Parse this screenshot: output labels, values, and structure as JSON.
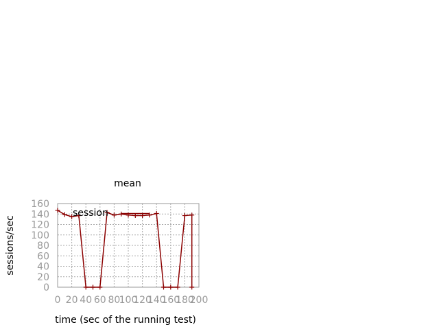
{
  "chart_data": {
    "type": "line",
    "title": "mean",
    "xlabel": "time (sec of the running test)",
    "ylabel": "sessions/sec",
    "xlim": [
      0,
      200
    ],
    "ylim": [
      0,
      160
    ],
    "xticks": [
      0,
      20,
      40,
      60,
      80,
      100,
      120,
      140,
      160,
      180,
      200
    ],
    "yticks": [
      0,
      20,
      40,
      60,
      80,
      100,
      120,
      140,
      160
    ],
    "grid": true,
    "legend": "top-left",
    "series": [
      {
        "name": "session",
        "color": "#8b0000",
        "points": [
          [
            0,
            147
          ],
          [
            10,
            139
          ],
          [
            20,
            135
          ],
          [
            30,
            137
          ],
          [
            40,
            0
          ],
          [
            50,
            0
          ],
          [
            60,
            0
          ],
          [
            70,
            143
          ],
          [
            80,
            138
          ],
          [
            90,
            140
          ],
          [
            100,
            138
          ],
          [
            110,
            137
          ],
          [
            120,
            137
          ],
          [
            130,
            138
          ],
          [
            140,
            141
          ],
          [
            150,
            0
          ],
          [
            160,
            0
          ],
          [
            170,
            0
          ],
          [
            180,
            137
          ],
          [
            190,
            138
          ],
          [
            190,
            0
          ]
        ],
        "segments": [
          [
            [
              90,
              141
            ],
            [
              110,
              141
            ]
          ],
          [
            [
              110,
              141
            ],
            [
              130,
              141
            ]
          ]
        ]
      }
    ]
  }
}
